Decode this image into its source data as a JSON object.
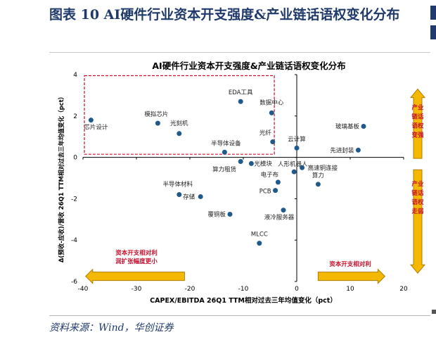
{
  "figure": {
    "title": "图表 10   AI硬件行业资本开支强度&产业链话语权变化分布",
    "source": "资料来源：Wind，华创证券"
  },
  "colors": {
    "point": "#1f5a8a",
    "highlight_box": "#c8102e",
    "arrow_fill": "#f5b800",
    "arrow_stroke": "#b07d00",
    "annotation_text": "#c8102e"
  },
  "chart_data": {
    "type": "scatter",
    "title": "AI硬件行业资本开支强度&产业链话语权变化分布",
    "xlabel": "CAPEX/EBITDA  26Q1 TTM相对过去三年均值变化（pct）",
    "ylabel": "Δ(预收-应收)/营收 26Q1 TTM相对过去三年均值变化（pct）",
    "xlim": [
      -40,
      20
    ],
    "ylim": [
      -6,
      4
    ],
    "xticks": [
      "-40",
      "-30",
      "-20",
      "-10",
      "0",
      "10",
      "20"
    ],
    "yticks": [
      "4",
      "2",
      "0",
      "-2",
      "-4",
      "-6"
    ],
    "grid": false,
    "points": [
      {
        "label": "EDA工具",
        "x": -10.5,
        "y": 2.7
      },
      {
        "label": "数据中心",
        "x": -4.7,
        "y": 2.15
      },
      {
        "label": "模拟芯片",
        "x": -26,
        "y": 1.65
      },
      {
        "label": "芯片设计",
        "x": -38.5,
        "y": 1.8
      },
      {
        "label": "光刻机",
        "x": -22,
        "y": 1.15
      },
      {
        "label": "光纤",
        "x": -4.5,
        "y": 0.75
      },
      {
        "label": "云计算",
        "x": 0,
        "y": 0.45
      },
      {
        "label": "玻璃基板",
        "x": 12.5,
        "y": 1.5
      },
      {
        "label": "先进封装",
        "x": 11.5,
        "y": 0.35
      },
      {
        "label": "半导体设备",
        "x": -13.5,
        "y": 0.25
      },
      {
        "label": "算力租赁",
        "x": -10.5,
        "y": -0.2
      },
      {
        "label": "光模块",
        "x": -8.5,
        "y": -0.3
      },
      {
        "label": "人形机器人",
        "x": -0.5,
        "y": -0.7
      },
      {
        "label": "高速铜连接",
        "x": 1,
        "y": -0.5
      },
      {
        "label": "算力",
        "x": 4,
        "y": -1.3
      },
      {
        "label": "电子布",
        "x": -3.5,
        "y": -1.2
      },
      {
        "label": "PCB",
        "x": -4,
        "y": -1.6
      },
      {
        "label": "半导体材料",
        "x": -22,
        "y": -1.8
      },
      {
        "label": "存储",
        "x": -18,
        "y": -1.9
      },
      {
        "label": "覆铜板",
        "x": -12.5,
        "y": -2.75
      },
      {
        "label": "液冷服务器",
        "x": -2.5,
        "y": -2.55
      },
      {
        "label": "MLCC",
        "x": -7,
        "y": -4.15
      }
    ],
    "annotations": {
      "top_right": "产业\n链话\n语权\n变强",
      "bottom_right": "产业\n链话\n语权\n走弱",
      "bottom_left": "资本开支相对利\n润扩张幅度更小",
      "bottom_center": "资本开支相对利"
    }
  }
}
